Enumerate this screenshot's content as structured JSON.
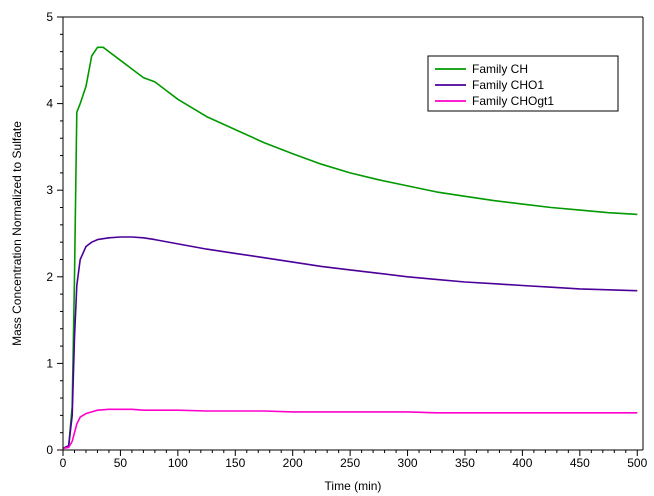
{
  "chart_data": {
    "type": "line",
    "title": "",
    "xlabel": "Time (min)",
    "ylabel": "Mass Concentration Normalized to Sulfate",
    "xlim": [
      0,
      505
    ],
    "ylim": [
      0,
      5
    ],
    "x_ticks": [
      0,
      50,
      100,
      150,
      200,
      250,
      300,
      350,
      400,
      450,
      500
    ],
    "y_ticks": [
      0,
      1,
      2,
      3,
      4,
      5
    ],
    "grid": false,
    "legend_position": "top-right",
    "series": [
      {
        "name": "Family CH",
        "color": "#009900",
        "x": [
          0,
          5,
          8,
          10,
          12,
          15,
          20,
          25,
          30,
          35,
          40,
          50,
          60,
          70,
          80,
          90,
          100,
          125,
          150,
          175,
          200,
          225,
          250,
          275,
          300,
          325,
          350,
          375,
          400,
          425,
          450,
          475,
          500
        ],
        "y": [
          0.02,
          0.05,
          0.5,
          2.0,
          3.9,
          4.0,
          4.2,
          4.55,
          4.65,
          4.65,
          4.6,
          4.5,
          4.4,
          4.3,
          4.25,
          4.15,
          4.05,
          3.85,
          3.7,
          3.55,
          3.42,
          3.3,
          3.2,
          3.12,
          3.05,
          2.98,
          2.93,
          2.88,
          2.84,
          2.8,
          2.77,
          2.74,
          2.72
        ]
      },
      {
        "name": "Family CHO1",
        "color": "#4b0099",
        "x": [
          0,
          5,
          8,
          10,
          12,
          15,
          20,
          25,
          30,
          40,
          50,
          60,
          70,
          80,
          100,
          125,
          150,
          175,
          200,
          225,
          250,
          275,
          300,
          325,
          350,
          375,
          400,
          425,
          450,
          475,
          500
        ],
        "y": [
          0.02,
          0.05,
          0.4,
          1.3,
          1.9,
          2.2,
          2.35,
          2.4,
          2.43,
          2.45,
          2.46,
          2.46,
          2.45,
          2.43,
          2.38,
          2.32,
          2.27,
          2.22,
          2.17,
          2.12,
          2.08,
          2.04,
          2.0,
          1.97,
          1.94,
          1.92,
          1.9,
          1.88,
          1.86,
          1.85,
          1.84
        ]
      },
      {
        "name": "Family CHOgt1",
        "color": "#ff00cc",
        "x": [
          0,
          5,
          8,
          10,
          12,
          15,
          20,
          25,
          30,
          40,
          50,
          60,
          70,
          80,
          100,
          125,
          150,
          175,
          200,
          225,
          250,
          275,
          300,
          325,
          350,
          375,
          400,
          425,
          450,
          475,
          500
        ],
        "y": [
          0.02,
          0.03,
          0.1,
          0.2,
          0.3,
          0.38,
          0.42,
          0.44,
          0.46,
          0.47,
          0.47,
          0.47,
          0.46,
          0.46,
          0.46,
          0.45,
          0.45,
          0.45,
          0.44,
          0.44,
          0.44,
          0.44,
          0.44,
          0.43,
          0.43,
          0.43,
          0.43,
          0.43,
          0.43,
          0.43,
          0.43
        ]
      }
    ]
  }
}
